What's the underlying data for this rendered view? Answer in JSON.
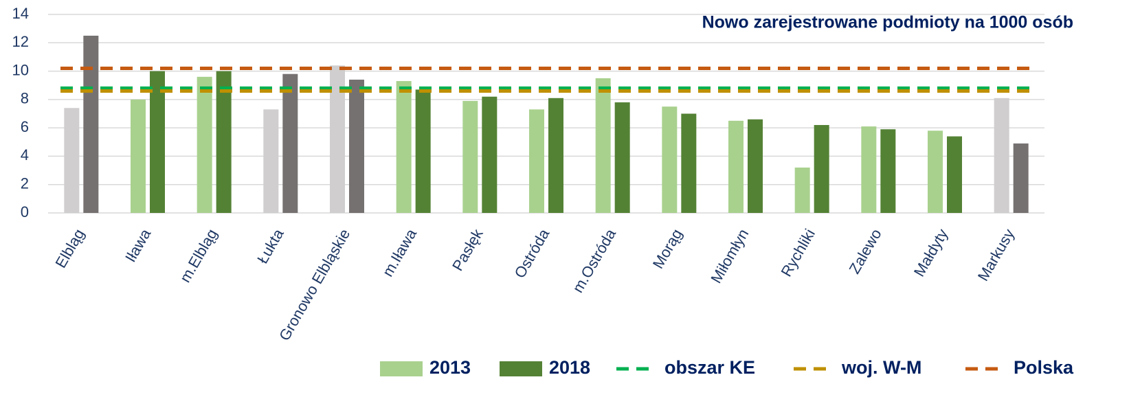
{
  "chart_data": {
    "type": "bar",
    "title": "Nowo zarejestrowane podmioty na 1000 osób",
    "categories": [
      "Elbląg",
      "Iława",
      "m.Elbląg",
      "Łukta",
      "Gronowo Elbląskie",
      "m.Iława",
      "Pasłęk",
      "Ostróda",
      "m.Ostróda",
      "Morąg",
      "Miłomłyn",
      "Rychliki",
      "Zalewo",
      "Małdyty",
      "Markusy"
    ],
    "series": [
      {
        "name": "2013",
        "color": "#a9d18e",
        "values": [
          7.4,
          8.0,
          9.6,
          7.3,
          10.4,
          9.3,
          7.9,
          7.3,
          9.5,
          7.5,
          6.5,
          3.2,
          6.1,
          5.8,
          8.1
        ],
        "colors": [
          "#d0cece",
          "#a9d18e",
          "#a9d18e",
          "#d0cece",
          "#d0cece",
          "#a9d18e",
          "#a9d18e",
          "#a9d18e",
          "#a9d18e",
          "#a9d18e",
          "#a9d18e",
          "#a9d18e",
          "#a9d18e",
          "#a9d18e",
          "#d0cece"
        ]
      },
      {
        "name": "2018",
        "color": "#548235",
        "values": [
          12.5,
          10.0,
          10.0,
          9.8,
          9.4,
          8.7,
          8.2,
          8.1,
          7.8,
          7.0,
          6.6,
          6.2,
          5.9,
          5.4,
          4.9
        ],
        "colors": [
          "#767171",
          "#548235",
          "#548235",
          "#767171",
          "#767171",
          "#548235",
          "#548235",
          "#548235",
          "#548235",
          "#548235",
          "#548235",
          "#548235",
          "#548235",
          "#548235",
          "#767171"
        ]
      }
    ],
    "reference_lines": [
      {
        "name": "obszar KE",
        "color": "#00b050",
        "value": 8.8
      },
      {
        "name": "woj. W-M",
        "color": "#bf9000",
        "value": 8.6
      },
      {
        "name": "Polska",
        "color": "#c55a11",
        "value": 10.2
      }
    ],
    "ylim": [
      0,
      14
    ],
    "yticks": [
      0,
      2,
      4,
      6,
      8,
      10,
      12,
      14
    ],
    "grid": true
  }
}
